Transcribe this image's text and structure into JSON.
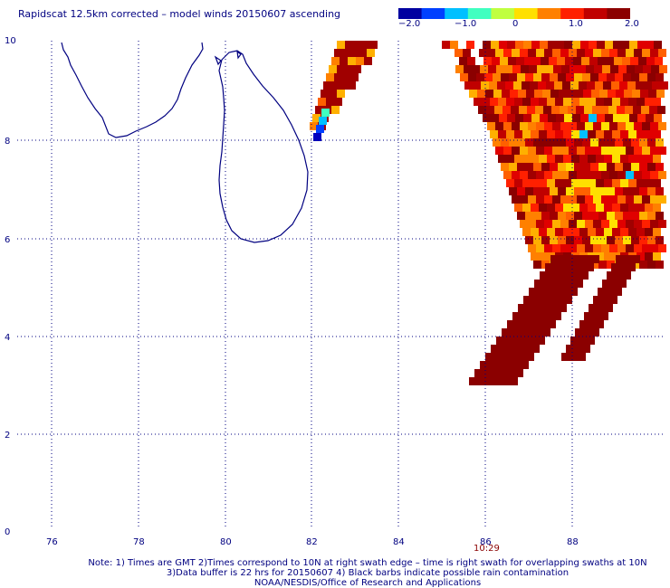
{
  "title": "Rapidscat 12.5km corrected – model winds 20150607 ascending",
  "colorbar": {
    "ticks": [
      "−2.0",
      "−1.0",
      "0",
      "1.0",
      "2.0"
    ],
    "tick_values": [
      -2.0,
      -1.0,
      0,
      1.0,
      2.0
    ],
    "range": [
      -2.0,
      2.0
    ],
    "colors": [
      "#0000a0",
      "#0040ff",
      "#00c0ff",
      "#40ffc0",
      "#c0ff40",
      "#ffe000",
      "#ff8000",
      "#ff2000",
      "#c00000",
      "#8b0000"
    ]
  },
  "map": {
    "lon_ticks": [
      "76",
      "78",
      "80",
      "82",
      "84",
      "86",
      "88"
    ],
    "lat_ticks": [
      "0",
      "2",
      "4",
      "6",
      "8",
      "10"
    ],
    "lon_range": [
      75,
      90
    ],
    "lat_range": [
      0,
      10
    ],
    "gridline_color": "#000080",
    "coastline_color": "#000080",
    "pass_time": "10:29"
  },
  "notes": [
    "Note: 1) Times are GMT 2)Times correspond to 10N at right swath edge – time is right swath for overlapping swaths at 10N",
    "3)Data buffer is 22 hrs for 20150607 4) Black barbs indicate possible rain contamination",
    "NOAA/NESDIS/Office of Research and Applications"
  ]
}
